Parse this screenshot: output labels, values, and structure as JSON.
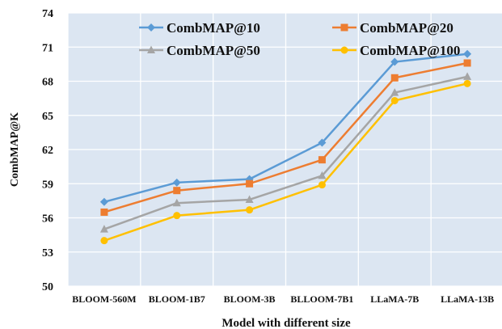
{
  "chart_data": {
    "type": "line",
    "title": "",
    "xlabel": "Model with different size",
    "ylabel": "CombMAP@K",
    "categories": [
      "BLOOM-560M",
      "BLOOM-1B7",
      "BLOOM-3B",
      "BLLOOM-7B1",
      "LLaMA-7B",
      "LLaMA-13B"
    ],
    "ylim": [
      50,
      74
    ],
    "yticks": [
      50,
      53,
      56,
      59,
      62,
      65,
      68,
      71,
      74
    ],
    "grid": true,
    "legend_position": "top",
    "series": [
      {
        "name": "CombMAP@10",
        "color": "#5b9bd5",
        "marker": "diamond",
        "values": [
          57.4,
          59.1,
          59.4,
          62.6,
          69.7,
          70.4
        ]
      },
      {
        "name": "CombMAP@20",
        "color": "#ed7d31",
        "marker": "square",
        "values": [
          56.5,
          58.4,
          59.0,
          61.1,
          68.3,
          69.6
        ]
      },
      {
        "name": "CombMAP@50",
        "color": "#a5a5a5",
        "marker": "triangle",
        "values": [
          55.0,
          57.3,
          57.6,
          59.7,
          67.0,
          68.4
        ]
      },
      {
        "name": "CombMAP@100",
        "color": "#ffc000",
        "marker": "circle",
        "values": [
          54.0,
          56.2,
          56.7,
          58.9,
          66.3,
          67.8
        ]
      }
    ]
  }
}
